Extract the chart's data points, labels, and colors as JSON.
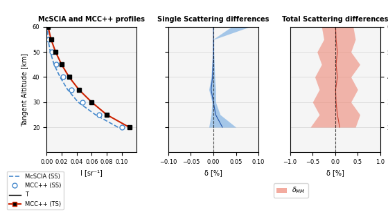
{
  "title1": "McSCIA and MCC++ profiles",
  "title2": "Single Scattering differences",
  "title3": "Total Scattering differences",
  "xlabel1": "I [sr⁻¹]",
  "xlabel2": "δ [%]",
  "xlabel3": "δ [%]",
  "ylabel": "Tangent Altitude [km]",
  "altitudes": [
    20,
    25,
    30,
    35,
    40,
    45,
    50,
    55,
    60
  ],
  "mcscia_ss": [
    0.095,
    0.065,
    0.042,
    0.028,
    0.018,
    0.01,
    0.005,
    0.002,
    0.001
  ],
  "mcc_ss": [
    0.1,
    0.07,
    0.048,
    0.033,
    0.022,
    0.013,
    0.007,
    0.003,
    0.001
  ],
  "mcc_ts": [
    0.11,
    0.08,
    0.06,
    0.043,
    0.03,
    0.02,
    0.012,
    0.006,
    0.002
  ],
  "ss_delta_center": [
    0.02,
    0.005,
    0.0,
    -0.005,
    -0.002,
    -0.001,
    0.0,
    0.0,
    0.0
  ],
  "ss_delta_band_min": [
    -0.01,
    -0.005,
    -0.003,
    -0.01,
    -0.005,
    -0.003,
    -0.002,
    -0.001,
    0.04
  ],
  "ss_delta_band_max": [
    0.05,
    0.015,
    0.005,
    0.005,
    0.003,
    0.002,
    0.001,
    0.001,
    0.08
  ],
  "ts_delta_center": [
    0.1,
    0.05,
    0.02,
    0.01,
    0.05,
    0.02,
    0.05,
    0.02,
    0.01
  ],
  "ts_delta_band_min": [
    -0.55,
    -0.35,
    -0.5,
    -0.35,
    -0.45,
    -0.3,
    -0.4,
    -0.25,
    -0.3
  ],
  "ts_delta_band_max": [
    0.45,
    0.55,
    0.35,
    0.5,
    0.35,
    0.55,
    0.35,
    0.45,
    0.4
  ],
  "ylim": [
    10,
    60
  ],
  "xlim1": [
    0.0,
    0.12
  ],
  "xlim2": [
    -0.1,
    0.1
  ],
  "xlim3": [
    -1.0,
    1.0
  ],
  "xticks1": [
    0.0,
    0.02,
    0.04,
    0.06,
    0.08,
    0.1
  ],
  "xticks2": [
    -0.1,
    -0.05,
    0.0,
    0.05,
    0.1
  ],
  "xticks3": [
    -1.0,
    -0.5,
    0.0,
    0.5,
    1.0
  ],
  "yticks": [
    20,
    30,
    40,
    50,
    60
  ],
  "color_mcscia_ss": "#4488cc",
  "color_mcc_ss": "#4488cc",
  "color_mcc_ts": "#cc2200",
  "color_ss_band": "#5599dd",
  "color_ts_band": "#ee8877",
  "color_ts_line": "#cc4433",
  "background": "#f5f5f5"
}
